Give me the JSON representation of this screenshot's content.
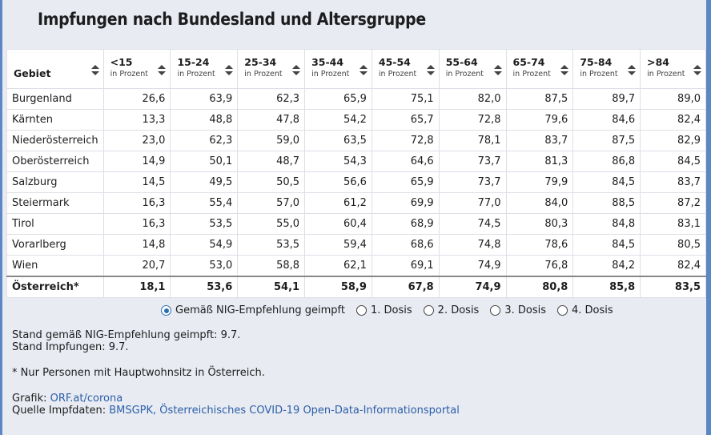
{
  "title": "Impfungen nach Bundesland und Altersgruppe",
  "chart_data": {
    "type": "table",
    "columns": [
      {
        "label": "Gebiet",
        "sub": ""
      },
      {
        "label": "<15",
        "sub": "in Prozent"
      },
      {
        "label": "15-24",
        "sub": "in Prozent"
      },
      {
        "label": "25-34",
        "sub": "in Prozent"
      },
      {
        "label": "35-44",
        "sub": "in Prozent"
      },
      {
        "label": "45-54",
        "sub": "in Prozent"
      },
      {
        "label": "55-64",
        "sub": "in Prozent"
      },
      {
        "label": "65-74",
        "sub": "in Prozent"
      },
      {
        "label": "75-84",
        "sub": "in Prozent"
      },
      {
        "label": ">84",
        "sub": "in Prozent"
      }
    ],
    "rows": [
      {
        "name": "Burgenland",
        "values": [
          "26,6",
          "63,9",
          "62,3",
          "65,9",
          "75,1",
          "82,0",
          "87,5",
          "89,7",
          "89,0"
        ]
      },
      {
        "name": "Kärnten",
        "values": [
          "13,3",
          "48,8",
          "47,8",
          "54,2",
          "65,7",
          "72,8",
          "79,6",
          "84,6",
          "82,4"
        ]
      },
      {
        "name": "Niederösterreich",
        "values": [
          "23,0",
          "62,3",
          "59,0",
          "63,5",
          "72,8",
          "78,1",
          "83,7",
          "87,5",
          "82,9"
        ]
      },
      {
        "name": "Oberösterreich",
        "values": [
          "14,9",
          "50,1",
          "48,7",
          "54,3",
          "64,6",
          "73,7",
          "81,3",
          "86,8",
          "84,5"
        ]
      },
      {
        "name": "Salzburg",
        "values": [
          "14,5",
          "49,5",
          "50,5",
          "56,6",
          "65,9",
          "73,7",
          "79,9",
          "84,5",
          "83,7"
        ]
      },
      {
        "name": "Steiermark",
        "values": [
          "16,3",
          "55,4",
          "57,0",
          "61,2",
          "69,9",
          "77,0",
          "84,0",
          "88,5",
          "87,2"
        ]
      },
      {
        "name": "Tirol",
        "values": [
          "16,3",
          "53,5",
          "55,0",
          "60,4",
          "68,9",
          "74,5",
          "80,3",
          "84,8",
          "83,1"
        ]
      },
      {
        "name": "Vorarlberg",
        "values": [
          "14,8",
          "54,9",
          "53,5",
          "59,4",
          "68,6",
          "74,8",
          "78,6",
          "84,5",
          "80,5"
        ]
      },
      {
        "name": "Wien",
        "values": [
          "20,7",
          "53,0",
          "58,8",
          "62,1",
          "69,1",
          "74,9",
          "76,8",
          "84,2",
          "82,4"
        ]
      }
    ],
    "total": {
      "name": "Österreich*",
      "values": [
        "18,1",
        "53,6",
        "54,1",
        "58,9",
        "67,8",
        "74,9",
        "80,8",
        "85,8",
        "83,5"
      ]
    }
  },
  "radios": [
    {
      "label": "Gemäß NIG-Empfehlung geimpft",
      "selected": true
    },
    {
      "label": "1. Dosis",
      "selected": false
    },
    {
      "label": "2. Dosis",
      "selected": false
    },
    {
      "label": "3. Dosis",
      "selected": false
    },
    {
      "label": "4. Dosis",
      "selected": false
    }
  ],
  "notes": {
    "stand_nig": "Stand gemäß NIG-Empfehlung geimpft: 9.7.",
    "stand_impf": "Stand Impfungen: 9.7.",
    "footnote": "* Nur Personen mit Hauptwohnsitz in Österreich.",
    "grafik_label": "Grafik: ",
    "grafik_link": "ORF.at/corona",
    "quelle_label": "Quelle Impfdaten: ",
    "quelle_link": "BMSGPK, Österreichisches COVID-19 Open-Data-Informationsportal"
  },
  "colors": {
    "accent": "#2b6fb3",
    "link": "#2b5ea8",
    "frame": "#5b87c4"
  }
}
